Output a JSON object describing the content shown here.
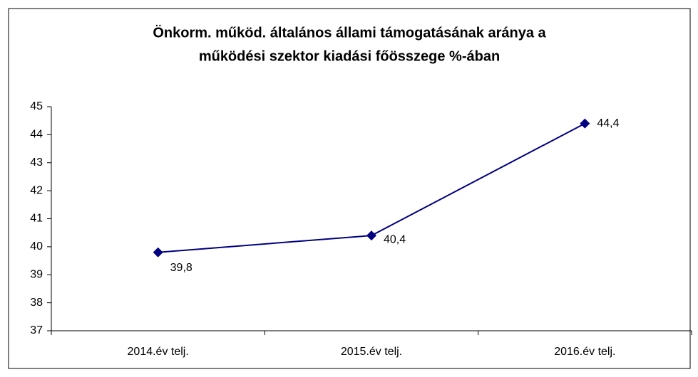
{
  "chart_data": {
    "type": "line",
    "title": [
      "Önkorm. működ. általános állami támogatásának aránya a",
      "működési szektor kiadási főösszege %-ában"
    ],
    "categories": [
      "2014.év telj.",
      "2015.év telj.",
      "2016.év telj."
    ],
    "series": [
      {
        "name": null,
        "color": "#000080",
        "values": [
          39.8,
          40.4,
          44.4
        ],
        "value_labels": [
          "39,8",
          "40,4",
          "44,4"
        ]
      }
    ],
    "ylim": [
      37,
      45
    ],
    "yticks": [
      37,
      38,
      39,
      40,
      41,
      42,
      43,
      44,
      45
    ],
    "grid": false
  }
}
